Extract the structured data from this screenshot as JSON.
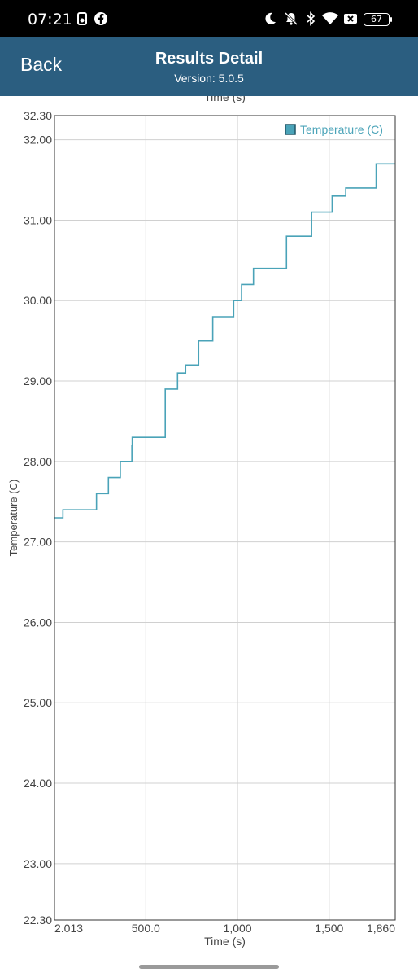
{
  "status_bar": {
    "time": "07:21",
    "battery": "67",
    "icons": [
      "notification-app-icon",
      "facebook-icon",
      "moon-icon",
      "bell-off-icon",
      "bluetooth-icon",
      "wifi-icon",
      "close-box-icon",
      "battery-icon"
    ]
  },
  "header": {
    "back_label": "Back",
    "title": "Results Detail",
    "subtitle": "Version: 5.0.5"
  },
  "chart_data": {
    "type": "line",
    "title": "",
    "xlabel": "Time (s)",
    "top_axis_label": "Time (s)",
    "ylabel": "Temperature (C)",
    "xlim": [
      2.013,
      1860
    ],
    "ylim": [
      22.3,
      32.3
    ],
    "x_ticks": [
      2.013,
      500,
      1000,
      1500,
      1860
    ],
    "x_tick_labels": [
      "2.013",
      "500.0",
      "1,000",
      "1,500",
      "1,860"
    ],
    "y_ticks": [
      22.3,
      23,
      24,
      25,
      26,
      27,
      28,
      29,
      30,
      31,
      32,
      32.3
    ],
    "y_tick_labels": [
      "22.30",
      "23.00",
      "24.00",
      "25.00",
      "26.00",
      "27.00",
      "28.00",
      "29.00",
      "30.00",
      "31.00",
      "32.00",
      "32.30"
    ],
    "grid": true,
    "legend_position": "top-right",
    "series": [
      {
        "name": "Temperature (C)",
        "color": "#4aa3b8",
        "step": true,
        "x": [
          2.013,
          48,
          231,
          296,
          361,
          424,
          426,
          606,
          673,
          717,
          788,
          865,
          979,
          1022,
          1087,
          1267,
          1404,
          1516,
          1590,
          1756,
          1860
        ],
        "y": [
          27.3,
          27.4,
          27.6,
          27.8,
          28.0,
          28.2,
          28.3,
          28.9,
          29.1,
          29.2,
          29.5,
          29.8,
          30.0,
          30.2,
          30.4,
          30.8,
          31.1,
          31.3,
          31.4,
          31.7,
          31.7
        ]
      }
    ]
  }
}
